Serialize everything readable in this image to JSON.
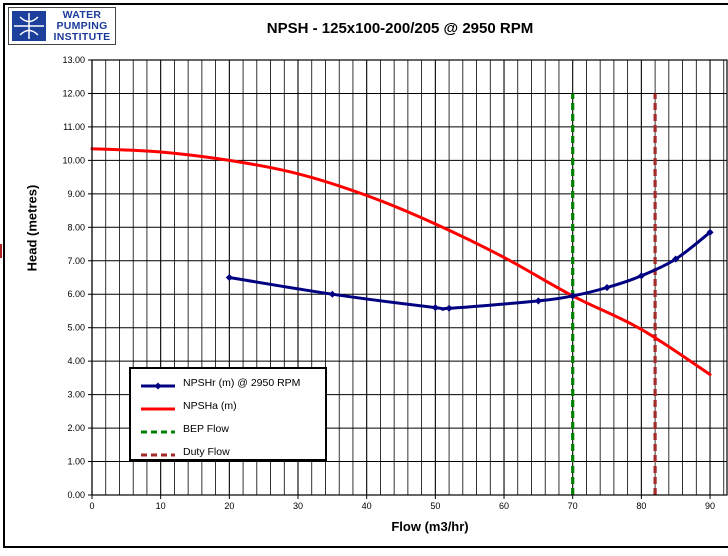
{
  "logo": {
    "line1": "WATER",
    "line2": "PUMPING",
    "line3": "INSTITUTE"
  },
  "chart_data": {
    "type": "line",
    "title": "NPSH - 125x100-200/205 @ 2950 RPM",
    "xlabel": "Flow (m3/hr)",
    "ylabel": "Head (metres)",
    "xlim": [
      0,
      90
    ],
    "ylim": [
      0,
      13
    ],
    "x_ticks": [
      0,
      10,
      20,
      30,
      40,
      50,
      60,
      70,
      80,
      90
    ],
    "x_tick_labels": [
      "0",
      "10",
      "20",
      "30",
      "40",
      "50",
      "60",
      "70",
      "80",
      "90"
    ],
    "y_ticks": [
      0,
      1,
      2,
      3,
      4,
      5,
      6,
      7,
      8,
      9,
      10,
      11,
      12,
      13
    ],
    "y_tick_labels": [
      "0.00",
      "1.00",
      "2.00",
      "3.00",
      "4.00",
      "5.00",
      "6.00",
      "7.00",
      "8.00",
      "9.00",
      "10.00",
      "11.00",
      "12.00",
      "13.00"
    ],
    "grid": true,
    "legend_position": "lower-left",
    "series": [
      {
        "name": "NPSHr (m) @ 2950 RPM",
        "color": "#000080",
        "style": "solid-with-markers",
        "x": [
          20,
          35,
          50,
          52,
          65,
          70,
          75,
          80,
          85,
          90
        ],
        "y": [
          6.5,
          6.0,
          5.6,
          5.58,
          5.8,
          5.95,
          6.2,
          6.55,
          7.05,
          7.85
        ]
      },
      {
        "name": "NPSHa (m)",
        "color": "#ff0000",
        "style": "solid",
        "x": [
          0,
          10,
          20,
          30,
          40,
          50,
          60,
          70,
          80,
          90
        ],
        "y": [
          10.35,
          10.25,
          10.0,
          9.6,
          8.95,
          8.1,
          7.1,
          5.95,
          4.95,
          3.6
        ]
      },
      {
        "name": "BEP Flow",
        "color": "#008000",
        "style": "dashed",
        "x": [
          70,
          70
        ],
        "y": [
          0,
          12
        ]
      },
      {
        "name": "Duty Flow",
        "color": "#a52a2a",
        "style": "dashed",
        "x": [
          82,
          82
        ],
        "y": [
          0,
          12
        ]
      }
    ]
  }
}
